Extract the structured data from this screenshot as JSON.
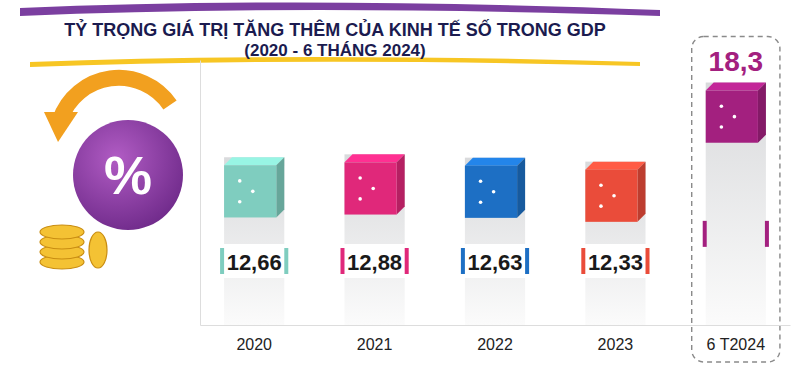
{
  "chart_data": {
    "type": "bar",
    "title": "TỶ TRỌNG GIÁ TRỊ TĂNG THÊM CỦA KINH TẾ SỐ TRONG GDP",
    "subtitle": "(2020 - 6 THÁNG 2024)",
    "categories": [
      "2020",
      "2021",
      "2022",
      "2023",
      "6 T2024"
    ],
    "values": [
      12.66,
      12.88,
      12.63,
      12.33,
      18.3
    ],
    "value_labels": [
      "12,66",
      "12,88",
      "12,63",
      "12,33",
      "18,3"
    ],
    "colors": [
      "#7fcdbf",
      "#e0287a",
      "#1d6fc4",
      "#ea4c3a",
      "#a3207f"
    ],
    "ylim": [
      0,
      20
    ],
    "data_labels": true,
    "tick_labels": "x",
    "grid": false,
    "annotations": [
      "%"
    ]
  }
}
